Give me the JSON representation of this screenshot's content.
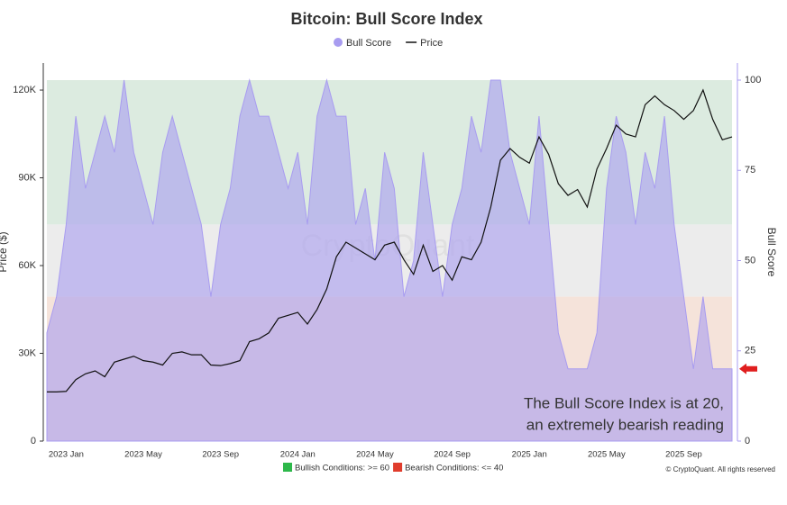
{
  "chart_data": {
    "type": "line-area",
    "title": "Bitcoin: Bull Score Index",
    "y_label": "Price ($)",
    "y2_label": "Bull Score",
    "watermark": "CryptoQuant",
    "copyright": "© CryptoQuant. All rights reserved",
    "annotations": [
      "The Bull Score Index is at 20,",
      "an extremely bearish reading"
    ],
    "zones": [
      {
        "label": "Bullish Conditions: >= 60",
        "from": 60,
        "color": "#dcebe0",
        "key_color": "#2db84a"
      },
      {
        "label": "Bearish Conditions: <= 40",
        "to": 40,
        "color": "#f5e3da",
        "key_color": "#e03c2c"
      }
    ],
    "neutral_color": "#ececec",
    "categories": [
      null,
      null,
      "2023 Jan",
      null,
      null,
      null,
      null,
      null,
      null,
      null,
      "2023 May",
      null,
      null,
      null,
      null,
      null,
      null,
      null,
      "2023 Sep",
      null,
      null,
      null,
      null,
      null,
      null,
      null,
      "2024 Jan",
      null,
      null,
      null,
      null,
      null,
      null,
      null,
      "2024 May",
      null,
      null,
      null,
      null,
      null,
      null,
      null,
      "2024 Sep",
      null,
      null,
      null,
      null,
      null,
      null,
      null,
      "2025 Jan",
      null,
      null,
      null,
      null,
      null,
      null,
      null,
      "2025 May",
      null,
      null,
      null,
      null,
      null,
      null,
      null,
      "2025 Sep",
      null,
      null,
      null,
      null,
      null
    ],
    "series": [
      {
        "name": "Bull Score",
        "color": "#a89cf0",
        "axis": "y2",
        "values": [
          30,
          40,
          60,
          90,
          70,
          80,
          90,
          80,
          100,
          80,
          70,
          60,
          80,
          90,
          80,
          70,
          60,
          40,
          60,
          70,
          90,
          100,
          90,
          90,
          80,
          70,
          80,
          60,
          90,
          100,
          90,
          90,
          60,
          70,
          50,
          80,
          70,
          40,
          50,
          80,
          60,
          40,
          60,
          70,
          90,
          80,
          100,
          100,
          80,
          70,
          60,
          90,
          60,
          30,
          20,
          20,
          20,
          30,
          70,
          90,
          80,
          60,
          80,
          70,
          90,
          60,
          40,
          20,
          40,
          20,
          20,
          20
        ]
      },
      {
        "name": "Price",
        "color": "#111111",
        "values": [
          16800,
          16800,
          17000,
          21000,
          23000,
          24000,
          22000,
          27000,
          28000,
          29000,
          27500,
          27000,
          26000,
          30000,
          30500,
          29500,
          29500,
          26000,
          25800,
          26500,
          27500,
          34000,
          35000,
          37000,
          42000,
          43000,
          44000,
          40000,
          45000,
          52000,
          63000,
          68000,
          66000,
          64000,
          62000,
          67000,
          68000,
          62000,
          57000,
          67000,
          58000,
          60000,
          55000,
          63000,
          62000,
          68000,
          80000,
          96000,
          100000,
          97000,
          95000,
          104000,
          98000,
          88000,
          84000,
          86000,
          80000,
          93000,
          100000,
          108000,
          105000,
          104000,
          115000,
          118000,
          115000,
          113000,
          110000,
          113000,
          120000,
          110000,
          103000,
          104000
        ]
      }
    ],
    "ylim": [
      0,
      123400
    ],
    "yticks": [
      0,
      {
        "value": 30000,
        "label": "30K"
      },
      {
        "value": 60000,
        "label": "60K"
      },
      {
        "value": 90000,
        "label": "90K"
      },
      {
        "value": 120000,
        "label": "120K"
      }
    ],
    "y2lim": [
      0,
      100
    ],
    "y2ticks": [
      0,
      25,
      50,
      75,
      100
    ]
  }
}
